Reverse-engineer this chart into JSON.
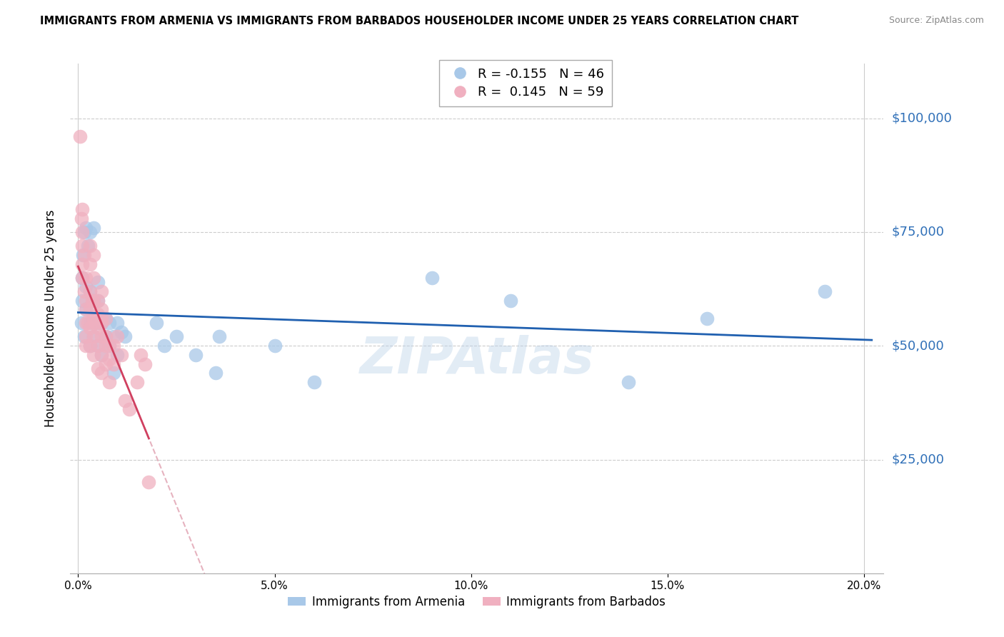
{
  "title": "IMMIGRANTS FROM ARMENIA VS IMMIGRANTS FROM BARBADOS HOUSEHOLDER INCOME UNDER 25 YEARS CORRELATION CHART",
  "source": "Source: ZipAtlas.com",
  "ylabel": "Householder Income Under 25 years",
  "xlabel_ticks": [
    "0.0%",
    "5.0%",
    "10.0%",
    "15.0%",
    "20.0%"
  ],
  "xlabel_vals": [
    0.0,
    0.05,
    0.1,
    0.15,
    0.2
  ],
  "ytick_labels": [
    "$25,000",
    "$50,000",
    "$75,000",
    "$100,000"
  ],
  "ytick_vals": [
    25000,
    50000,
    75000,
    100000
  ],
  "ylim": [
    0,
    112000
  ],
  "xlim": [
    -0.002,
    0.205
  ],
  "armenia_R": -0.155,
  "armenia_N": 46,
  "barbados_R": 0.145,
  "barbados_N": 59,
  "armenia_color": "#a8c8e8",
  "barbados_color": "#f0b0c0",
  "armenia_line_color": "#2060b0",
  "barbados_line_color": "#d04060",
  "barbados_dash_color": "#e0a0b0",
  "watermark_color": "#b8d0e8",
  "armenia_x": [
    0.0008,
    0.001,
    0.001,
    0.0012,
    0.0015,
    0.0015,
    0.002,
    0.002,
    0.002,
    0.0025,
    0.003,
    0.003,
    0.003,
    0.003,
    0.004,
    0.004,
    0.004,
    0.005,
    0.005,
    0.005,
    0.005,
    0.006,
    0.006,
    0.007,
    0.007,
    0.008,
    0.008,
    0.009,
    0.009,
    0.01,
    0.01,
    0.011,
    0.012,
    0.02,
    0.022,
    0.025,
    0.03,
    0.035,
    0.036,
    0.05,
    0.06,
    0.09,
    0.11,
    0.14,
    0.16,
    0.19
  ],
  "armenia_y": [
    55000,
    60000,
    65000,
    70000,
    52000,
    75000,
    58000,
    63000,
    76000,
    72000,
    50000,
    55000,
    62000,
    75000,
    52000,
    60000,
    76000,
    50000,
    55000,
    60000,
    64000,
    48000,
    55000,
    52000,
    56000,
    50000,
    55000,
    44000,
    52000,
    48000,
    55000,
    53000,
    52000,
    55000,
    50000,
    52000,
    48000,
    44000,
    52000,
    50000,
    42000,
    65000,
    60000,
    42000,
    56000,
    62000
  ],
  "barbados_x": [
    0.0005,
    0.0008,
    0.001,
    0.001,
    0.001,
    0.001,
    0.001,
    0.0015,
    0.0015,
    0.002,
    0.002,
    0.002,
    0.002,
    0.002,
    0.002,
    0.0025,
    0.003,
    0.003,
    0.003,
    0.003,
    0.003,
    0.003,
    0.0035,
    0.004,
    0.004,
    0.004,
    0.004,
    0.004,
    0.004,
    0.0045,
    0.005,
    0.005,
    0.005,
    0.005,
    0.005,
    0.006,
    0.006,
    0.006,
    0.006,
    0.006,
    0.006,
    0.006,
    0.007,
    0.007,
    0.007,
    0.007,
    0.008,
    0.008,
    0.008,
    0.009,
    0.009,
    0.01,
    0.011,
    0.012,
    0.013,
    0.015,
    0.016,
    0.017,
    0.018
  ],
  "barbados_y": [
    96000,
    78000,
    75000,
    72000,
    68000,
    65000,
    80000,
    70000,
    62000,
    60000,
    58000,
    55000,
    52000,
    50000,
    65000,
    55000,
    72000,
    68000,
    62000,
    58000,
    54000,
    50000,
    60000,
    70000,
    65000,
    60000,
    56000,
    52000,
    48000,
    55000,
    60000,
    57000,
    54000,
    50000,
    45000,
    62000,
    58000,
    56000,
    52000,
    48000,
    44000,
    55000,
    56000,
    52000,
    50000,
    46000,
    50000,
    47000,
    42000,
    50000,
    46000,
    52000,
    48000,
    38000,
    36000,
    42000,
    48000,
    46000,
    20000
  ]
}
